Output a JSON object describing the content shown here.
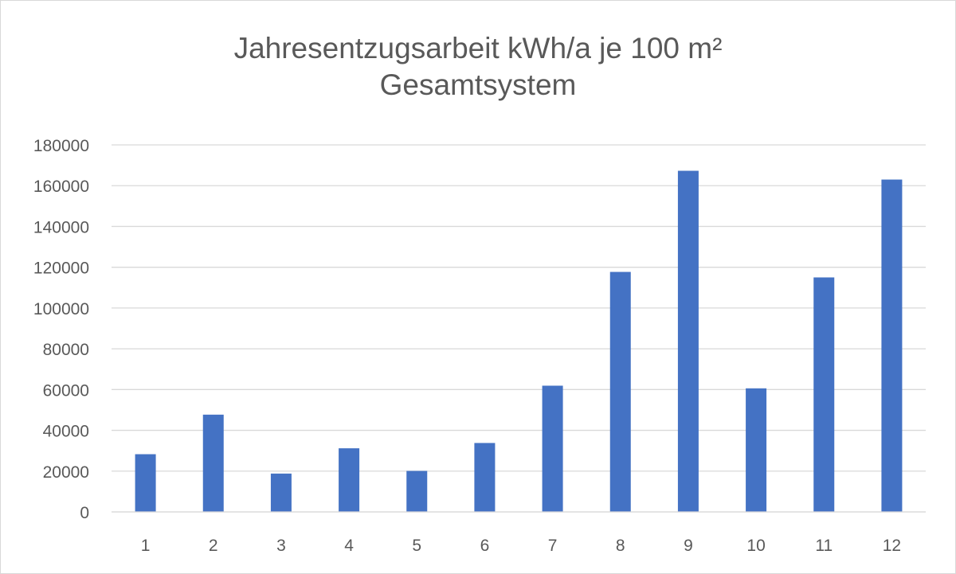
{
  "chart_data": {
    "type": "bar",
    "title_line1": "Jahresentzugsarbeit kWh/a  je 100 m²",
    "title_line2": "Gesamtsystem",
    "categories": [
      "1",
      "2",
      "3",
      "4",
      "5",
      "6",
      "7",
      "8",
      "9",
      "10",
      "11",
      "12"
    ],
    "values": [
      28300,
      47700,
      18800,
      31200,
      20100,
      33800,
      61900,
      117700,
      167300,
      60600,
      115000,
      163000
    ],
    "ylim": [
      0,
      180000
    ],
    "yticks": [
      0,
      20000,
      40000,
      60000,
      80000,
      100000,
      120000,
      140000,
      160000,
      180000
    ],
    "grid": true,
    "legend": "none",
    "bar_color": "#4472c4",
    "grid_color": "#d9d9d9"
  }
}
